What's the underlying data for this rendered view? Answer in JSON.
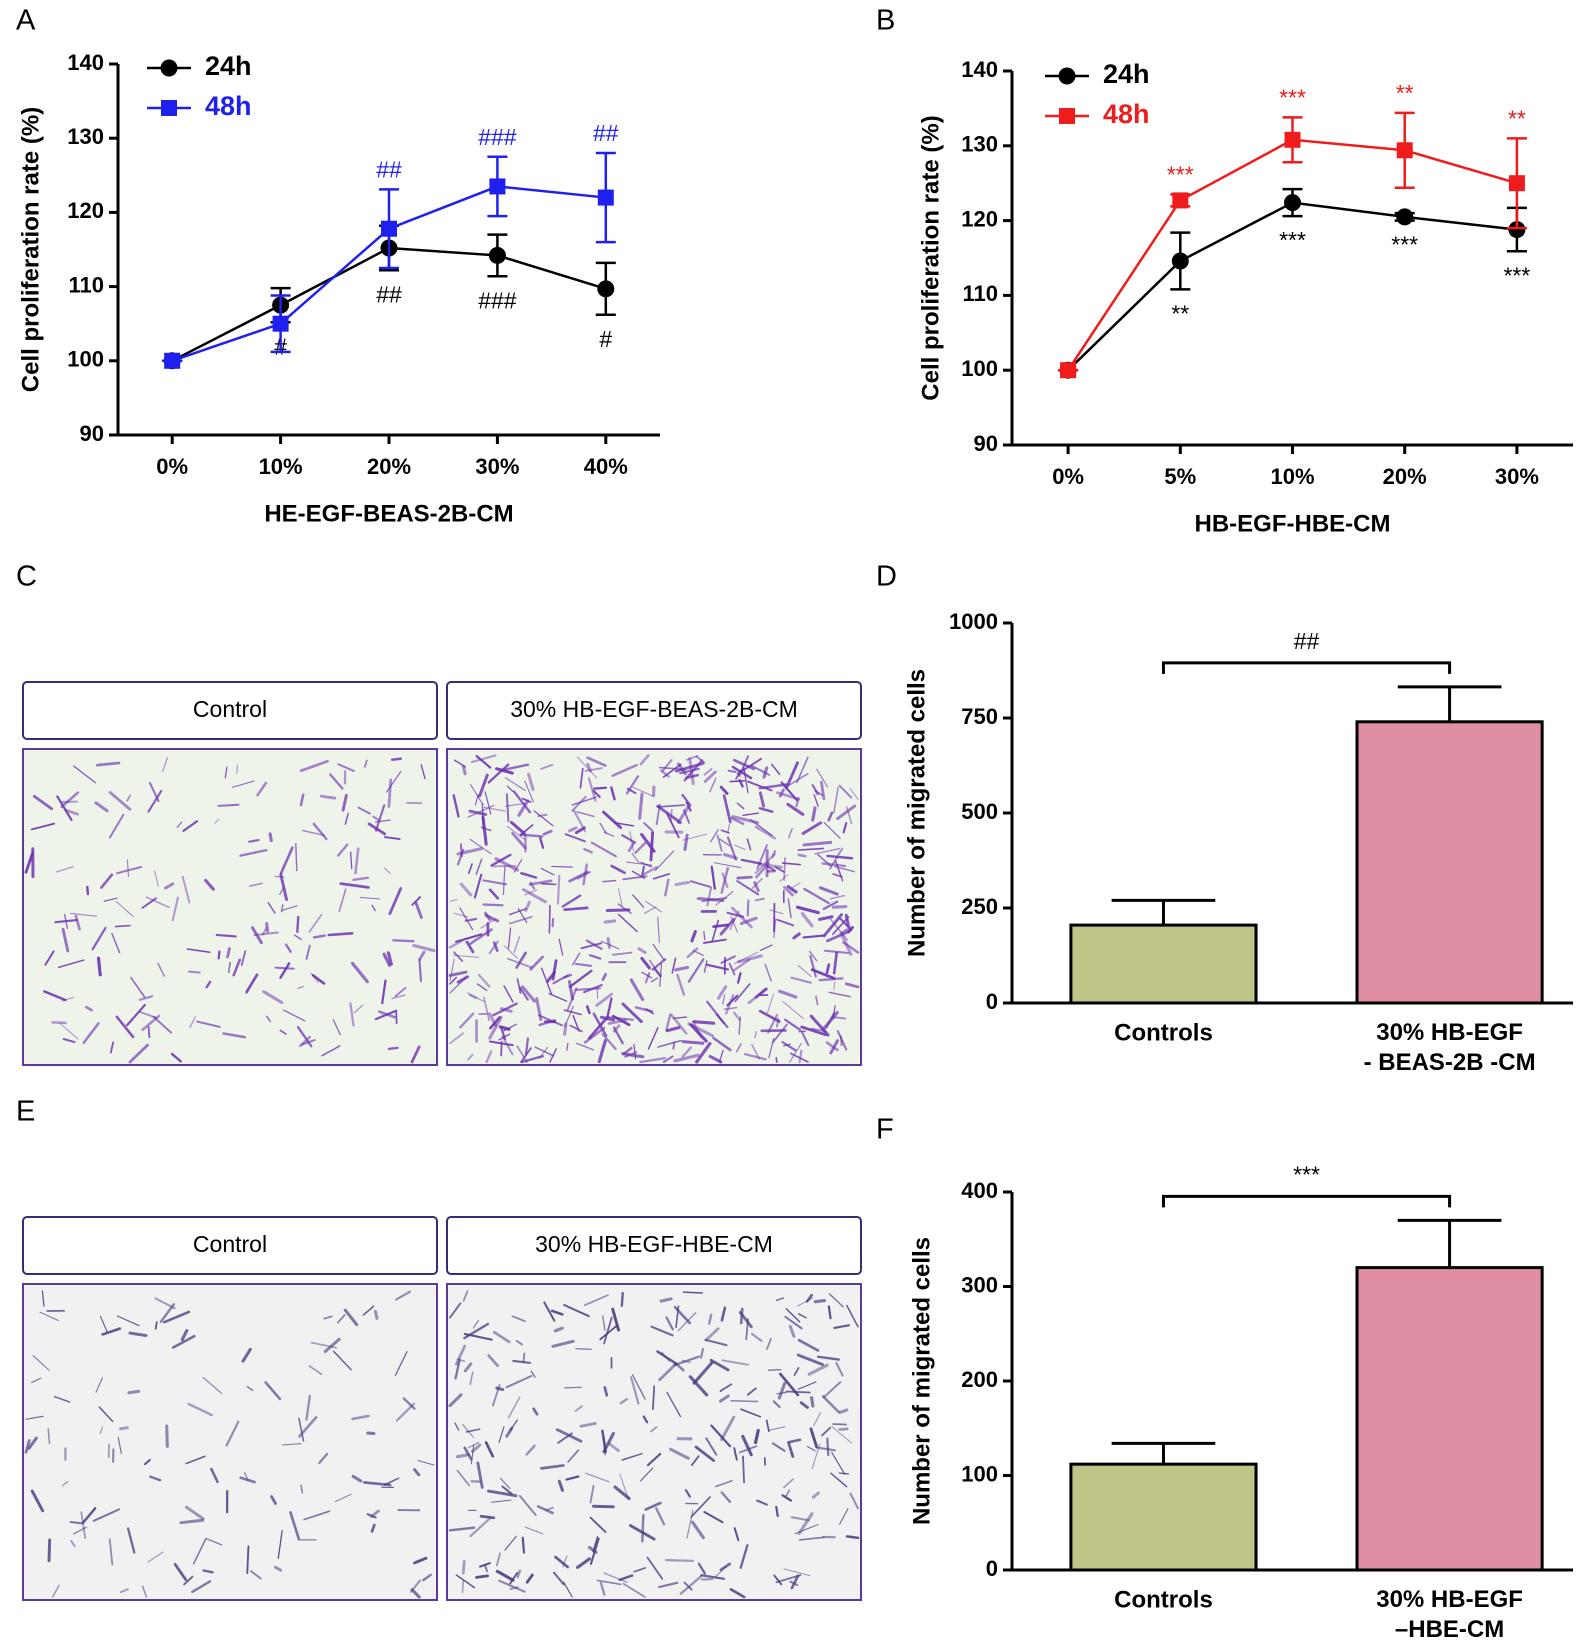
{
  "chart_data": [
    {
      "type": "line",
      "panel": "A",
      "x_label": "HE-EGF-BEAS-2B-CM",
      "y_label": "Cell proliferation rate (%)",
      "categories": [
        "0%",
        "10%",
        "20%",
        "30%",
        "40%"
      ],
      "series": [
        {
          "name": "24h",
          "color": "#000000",
          "marker": "circle",
          "values": [
            100,
            107.5,
            115.2,
            114.2,
            109.7
          ],
          "errors": [
            0,
            2.3,
            3,
            2.8,
            3.5
          ],
          "annotations": [
            null,
            "#",
            "##",
            "###",
            "#"
          ],
          "annotation_position": "below"
        },
        {
          "name": "48h",
          "color": "#2020ee",
          "marker": "square",
          "values": [
            100,
            105,
            117.8,
            123.5,
            122
          ],
          "errors": [
            0,
            3.8,
            5.3,
            4,
            6
          ],
          "annotations": [
            null,
            null,
            "##",
            "###",
            "##"
          ],
          "annotation_position": "above"
        }
      ],
      "ylim": [
        90,
        140
      ],
      "yticks": [
        90,
        100,
        110,
        120,
        130,
        140
      ],
      "legend": "upper left"
    },
    {
      "type": "line",
      "panel": "B",
      "x_label": "HB-EGF-HBE-CM",
      "y_label": "Cell proliferation rate (%)",
      "categories": [
        "0%",
        "5%",
        "10%",
        "20%",
        "30%"
      ],
      "series": [
        {
          "name": "24h",
          "color": "#000000",
          "marker": "circle",
          "values": [
            100,
            114.6,
            122.4,
            120.5,
            118.8
          ],
          "errors": [
            0,
            3.8,
            1.8,
            0.5,
            2.9
          ],
          "annotations": [
            null,
            "**",
            "***",
            "***",
            "***"
          ],
          "annotation_position": "below"
        },
        {
          "name": "48h",
          "color": "#ee1c1c",
          "marker": "square",
          "values": [
            100,
            122.7,
            130.8,
            129.4,
            125
          ],
          "errors": [
            0,
            0.8,
            3,
            5,
            6
          ],
          "annotations": [
            null,
            "***",
            "***",
            "**",
            "**"
          ],
          "annotation_position": "above"
        }
      ],
      "ylim": [
        90,
        140
      ],
      "yticks": [
        90,
        100,
        110,
        120,
        130,
        140
      ],
      "legend": "upper left"
    },
    {
      "type": "bar",
      "panel": "D",
      "y_label": "Number of migrated cells",
      "categories": [
        "Controls",
        "30% HB-EGF\n- BEAS-2B -CM"
      ],
      "values": [
        205,
        740
      ],
      "errors": [
        65,
        92
      ],
      "colors": [
        "#bec586",
        "#df8ea4"
      ],
      "ylim": [
        0,
        1000
      ],
      "yticks": [
        0,
        250,
        500,
        750,
        1000
      ],
      "bracket": "##"
    },
    {
      "type": "bar",
      "panel": "F",
      "y_label": "Number of migrated cells",
      "categories": [
        "Controls",
        "30% HB-EGF\n–HBE-CM"
      ],
      "values": [
        112,
        320
      ],
      "errors": [
        22,
        50
      ],
      "colors": [
        "#bec586",
        "#df8ea4"
      ],
      "ylim": [
        0,
        400
      ],
      "yticks": [
        0,
        100,
        200,
        300,
        400
      ],
      "bracket": "***"
    }
  ],
  "micrographs": [
    {
      "panel": "C",
      "labels": [
        "Control",
        "30% HB-EGF-BEAS-2B-CM"
      ]
    },
    {
      "panel": "E",
      "labels": [
        "Control",
        "30% HB-EGF-HBE-CM"
      ]
    }
  ]
}
